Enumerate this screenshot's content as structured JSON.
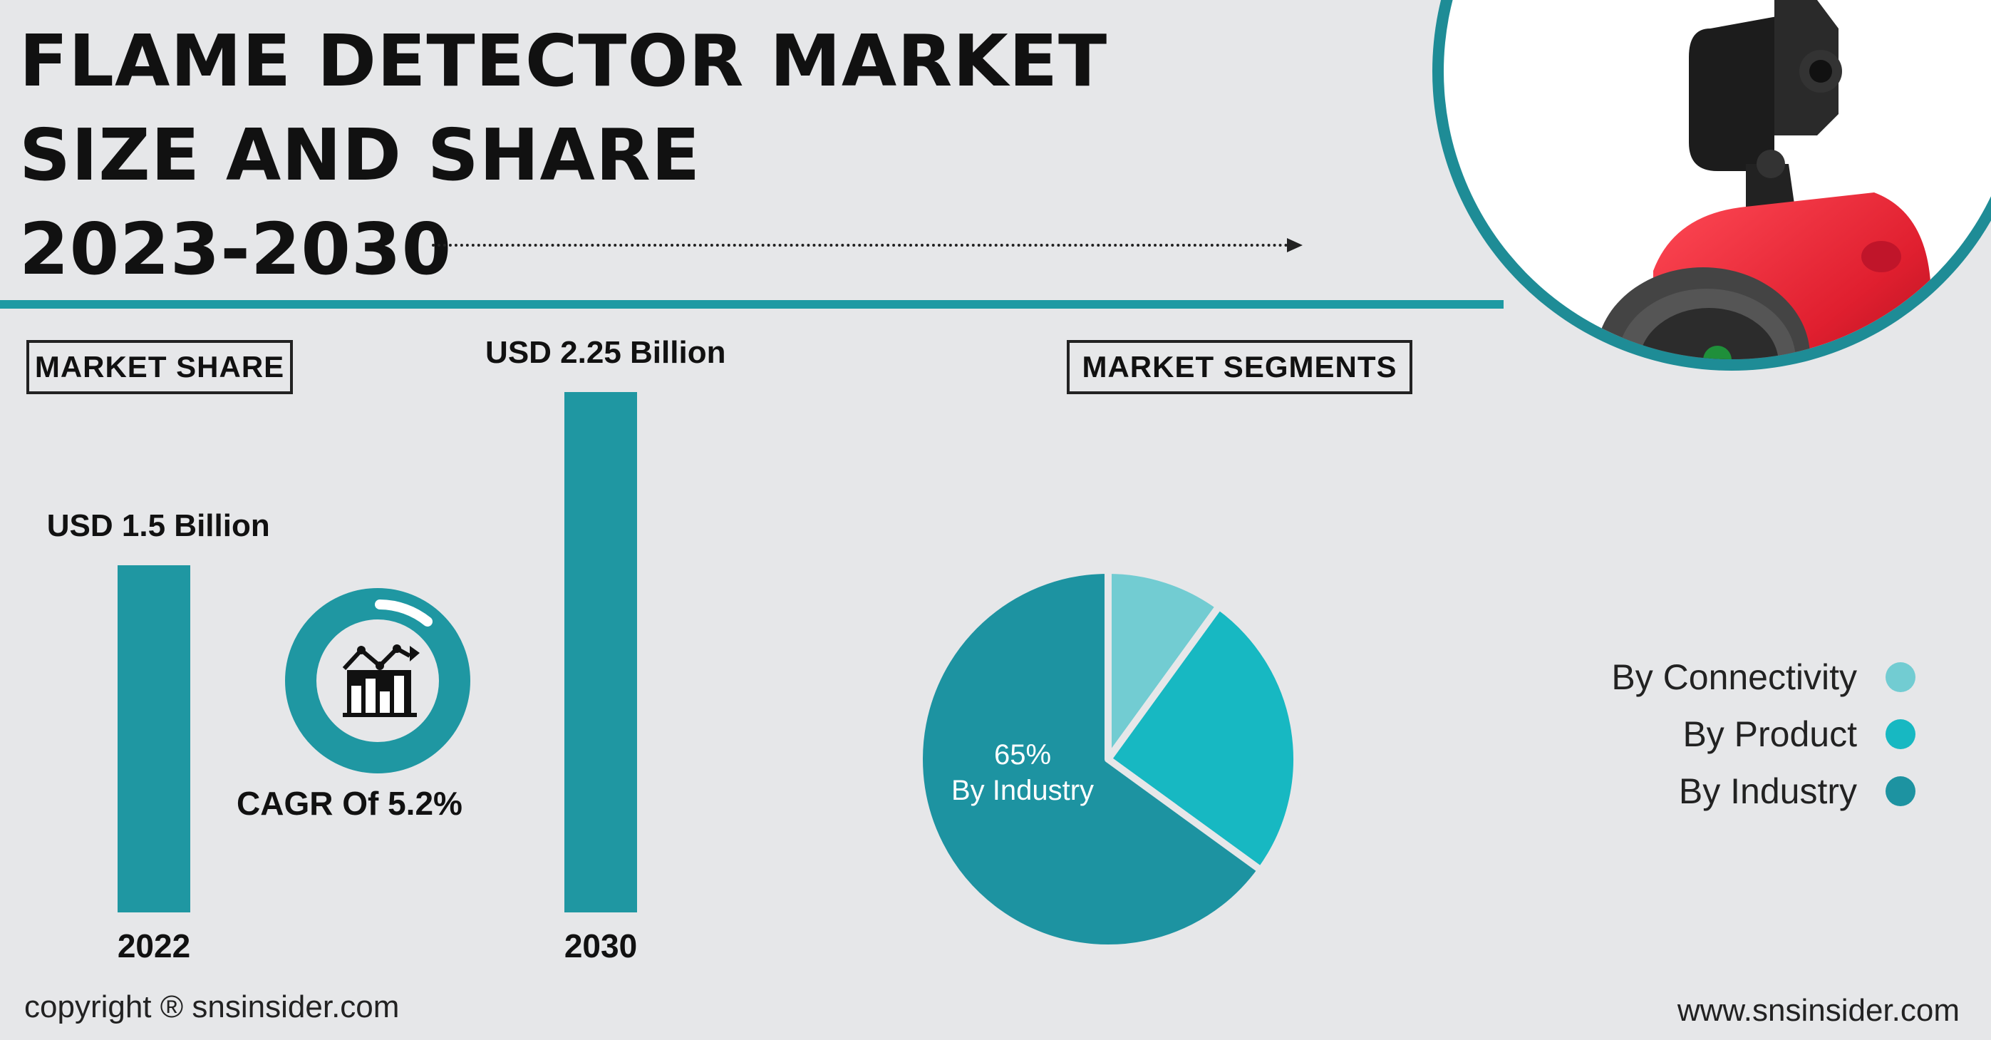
{
  "title": {
    "line1": "FLAME DETECTOR MARKET",
    "line2": "SIZE AND SHARE",
    "line3": "2023-2030"
  },
  "market_share": {
    "label": "MARKET SHARE",
    "cagr": "CAGR Of 5.2%",
    "icon": "chart-growth-icon"
  },
  "market_segments": {
    "label": "MARKET SEGMENTS"
  },
  "image": {
    "icon": "flame-detector-product-photo"
  },
  "footer": {
    "copyright": "copyright ® snsinsider.com",
    "website": "www.snsinsider.com"
  },
  "colors": {
    "teal": "#1f97a2",
    "light_teal": "#72ccd2",
    "bright_teal": "#17b8c2",
    "dark_teal": "#1d93a1"
  },
  "chart_data": [
    {
      "type": "bar",
      "categories": [
        "2022",
        "2030"
      ],
      "values": [
        1.5,
        2.25
      ],
      "value_labels": [
        "USD 1.5 Billion",
        "USD 2.25 Billion"
      ],
      "title": "",
      "xlabel": "",
      "ylabel": ""
    },
    {
      "type": "pie",
      "categories": [
        "By Connectivity",
        "By Product",
        "By Industry"
      ],
      "values": [
        10,
        25,
        65
      ],
      "colors": [
        "#72ccd2",
        "#17b8c2",
        "#1d93a1"
      ],
      "data_label": {
        "value": "65%",
        "category": "By Industry"
      },
      "legend_position": "right"
    }
  ]
}
